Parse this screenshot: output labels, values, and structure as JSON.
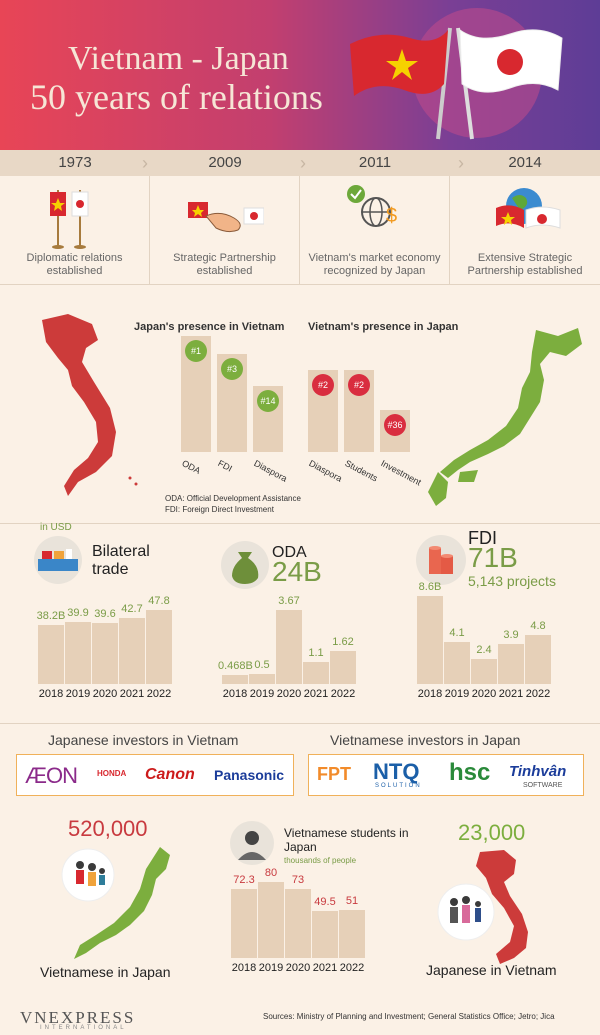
{
  "header": {
    "title_line1": "Vietnam - Japan",
    "title_line2": "50 years of relations"
  },
  "timeline": [
    {
      "year": "1973",
      "caption": "Diplomatic relations established"
    },
    {
      "year": "2009",
      "caption": "Strategic Partnership established"
    },
    {
      "year": "2011",
      "caption": "Vietnam's market economy recognized by Japan"
    },
    {
      "year": "2014",
      "caption": "Extensive Strategic Partnership established"
    }
  ],
  "presence": {
    "japan_title": "Japan's presence in Vietnam",
    "japan_items": [
      {
        "label": "ODA",
        "rank": "#1"
      },
      {
        "label": "FDI",
        "rank": "#3"
      },
      {
        "label": "Diaspora",
        "rank": "#14"
      }
    ],
    "vietnam_title": "Vietnam's presence in Japan",
    "vietnam_items": [
      {
        "label": "Diaspora",
        "rank": "#2"
      },
      {
        "label": "Students",
        "rank": "#2"
      },
      {
        "label": "Investment",
        "rank": "#36"
      }
    ],
    "note1": "ODA: Official Development Assistance",
    "note2": "FDI: Foreign Direct Investment",
    "colors": {
      "green": "#7cae3e",
      "red": "#d92d3f",
      "bar": "#e6d0b8"
    }
  },
  "stats": {
    "unit": "in USD",
    "trade": {
      "title": "Bilateral trade"
    },
    "oda": {
      "title": "ODA",
      "total": "24B"
    },
    "fdi": {
      "title": "FDI",
      "total": "71B",
      "projects": "5,143 projects"
    }
  },
  "chart_data": [
    {
      "type": "bar",
      "title": "Bilateral trade",
      "categories": [
        "2018",
        "2019",
        "2020",
        "2021",
        "2022"
      ],
      "values": [
        38.2,
        39.9,
        39.6,
        42.7,
        47.8
      ],
      "labels": [
        "38.2B",
        "39.9",
        "39.6",
        "42.7",
        "47.8"
      ]
    },
    {
      "type": "bar",
      "title": "ODA",
      "categories": [
        "2018",
        "2019",
        "2020",
        "2021",
        "2022"
      ],
      "values": [
        0.468,
        0.5,
        3.67,
        1.1,
        1.62
      ],
      "labels": [
        "0.468B",
        "0.5",
        "3.67",
        "1.1",
        "1.62"
      ]
    },
    {
      "type": "bar",
      "title": "FDI",
      "categories": [
        "2018",
        "2019",
        "2020",
        "2021",
        "2022"
      ],
      "values": [
        8.6,
        4.1,
        2.4,
        3.9,
        4.8
      ],
      "labels": [
        "8.6B",
        "4.1",
        "2.4",
        "3.9",
        "4.8"
      ]
    },
    {
      "type": "bar",
      "title": "Vietnamese students in Japan",
      "subtitle": "thousands of people",
      "categories": [
        "2018",
        "2019",
        "2020",
        "2021",
        "2022"
      ],
      "values": [
        72.3,
        80,
        73,
        49.5,
        51
      ],
      "labels": [
        "72.3",
        "80",
        "73",
        "49.5",
        "51"
      ]
    }
  ],
  "investors": {
    "japanese_title": "Japanese investors in Vietnam",
    "japanese_logos": [
      "ÆON",
      "HONDA",
      "Canon",
      "Panasonic"
    ],
    "vietnamese_title": "Vietnamese investors in Japan",
    "vietnamese_logos": [
      "FPT",
      "NTQ",
      "SOLUTION",
      "hsc",
      "Tinhvân",
      "SOFTWARE"
    ]
  },
  "people": {
    "vn_in_japan_count": "520,000",
    "vn_in_japan_label": "Vietnamese in Japan",
    "students_title": "Vietnamese students in Japan",
    "students_unit": "thousands of people",
    "jp_in_vn_count": "23,000",
    "jp_in_vn_label": "Japanese in Vietnam"
  },
  "footer": {
    "brand": "VNEXPRESS",
    "brand_sub": "INTERNATIONAL",
    "sources": "Sources: Ministry of Planning and Investment; General Statistics Office; Jetro; Jica"
  }
}
